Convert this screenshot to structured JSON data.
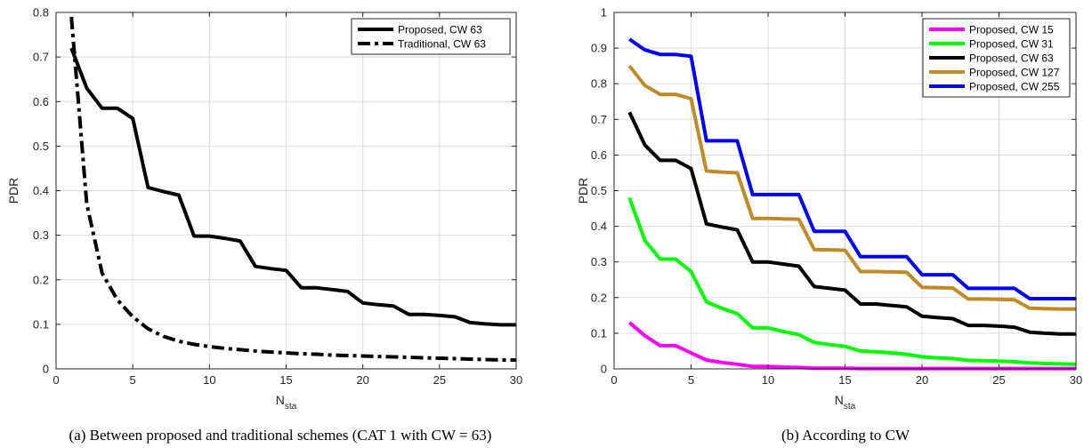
{
  "chart_data": [
    {
      "type": "line",
      "caption": "(a) Between proposed and traditional schemes (CAT 1 with CW = 63)",
      "xlabel": "N",
      "xlabel_sub": "sta",
      "ylabel": "PDR",
      "xlim": [
        0,
        30
      ],
      "ylim": [
        0,
        0.8
      ],
      "xticks": [
        0,
        5,
        10,
        15,
        20,
        25,
        30
      ],
      "yticks": [
        0,
        0.1,
        0.2,
        0.3,
        0.4,
        0.5,
        0.6,
        0.7,
        0.8
      ],
      "grid": true,
      "legend_position": "top-right",
      "series": [
        {
          "name": "Proposed, CW 63",
          "color": "#000000",
          "style": "solid",
          "x": [
            1,
            2,
            3,
            4,
            5,
            6,
            7,
            8,
            9,
            10,
            11,
            12,
            13,
            14,
            15,
            16,
            17,
            18,
            19,
            20,
            21,
            22,
            23,
            24,
            25,
            26,
            27,
            28,
            29,
            30
          ],
          "y": [
            0.72,
            0.63,
            0.585,
            0.585,
            0.562,
            0.407,
            0.398,
            0.39,
            0.298,
            0.298,
            0.293,
            0.287,
            0.23,
            0.225,
            0.221,
            0.182,
            0.182,
            0.178,
            0.174,
            0.148,
            0.144,
            0.141,
            0.122,
            0.122,
            0.12,
            0.117,
            0.104,
            0.101,
            0.099,
            0.099
          ]
        },
        {
          "name": "Traditional, CW 63",
          "color": "#000000",
          "style": "dashdot",
          "x": [
            1,
            2,
            3,
            4,
            5,
            6,
            7,
            8,
            9,
            10,
            11,
            12,
            13,
            14,
            15,
            16,
            17,
            18,
            19,
            20,
            21,
            22,
            23,
            24,
            25,
            26,
            27,
            28,
            29,
            30
          ],
          "y": [
            0.79,
            0.37,
            0.215,
            0.155,
            0.117,
            0.09,
            0.073,
            0.062,
            0.055,
            0.05,
            0.046,
            0.043,
            0.04,
            0.038,
            0.036,
            0.034,
            0.033,
            0.031,
            0.03,
            0.029,
            0.028,
            0.027,
            0.026,
            0.025,
            0.024,
            0.023,
            0.022,
            0.021,
            0.02,
            0.02
          ]
        }
      ]
    },
    {
      "type": "line",
      "caption": "(b) According to CW",
      "xlabel": "N",
      "xlabel_sub": "sta",
      "ylabel": "PDR",
      "xlim": [
        0,
        30
      ],
      "ylim": [
        0,
        1
      ],
      "xticks": [
        0,
        5,
        10,
        15,
        20,
        25,
        30
      ],
      "yticks": [
        0,
        0.1,
        0.2,
        0.3,
        0.4,
        0.5,
        0.6,
        0.7,
        0.8,
        0.9,
        1
      ],
      "grid": true,
      "legend_position": "top-right",
      "series": [
        {
          "name": "Proposed, CW 15",
          "color": "#ff00ff",
          "style": "solid",
          "x": [
            1,
            2,
            3,
            4,
            5,
            6,
            7,
            8,
            9,
            10,
            11,
            12,
            13,
            14,
            15,
            16,
            17,
            18,
            19,
            20,
            21,
            22,
            23,
            24,
            25,
            26,
            27,
            28,
            29,
            30
          ],
          "y": [
            0.13,
            0.093,
            0.065,
            0.065,
            0.045,
            0.025,
            0.018,
            0.013,
            0.007,
            0.007,
            0.005,
            0.004,
            0.002,
            0.002,
            0.002,
            0.001,
            0.001,
            0.001,
            0.001,
            0.001,
            0.001,
            0.001,
            0.001,
            0.001,
            0.001,
            0.001,
            0.001,
            0.001,
            0.001,
            0.001
          ]
        },
        {
          "name": "Proposed, CW 31",
          "color": "#00ff00",
          "style": "solid",
          "x": [
            1,
            2,
            3,
            4,
            5,
            6,
            7,
            8,
            9,
            10,
            11,
            12,
            13,
            14,
            15,
            16,
            17,
            18,
            19,
            20,
            21,
            22,
            23,
            24,
            25,
            26,
            27,
            28,
            29,
            30
          ],
          "y": [
            0.48,
            0.36,
            0.308,
            0.308,
            0.273,
            0.188,
            0.17,
            0.155,
            0.115,
            0.115,
            0.105,
            0.096,
            0.074,
            0.068,
            0.063,
            0.05,
            0.048,
            0.045,
            0.041,
            0.034,
            0.031,
            0.029,
            0.024,
            0.023,
            0.022,
            0.02,
            0.017,
            0.015,
            0.014,
            0.013
          ]
        },
        {
          "name": "Proposed, CW 63",
          "color": "#000000",
          "style": "solid",
          "x": [
            1,
            2,
            3,
            4,
            5,
            6,
            7,
            8,
            9,
            10,
            11,
            12,
            13,
            14,
            15,
            16,
            17,
            18,
            19,
            20,
            21,
            22,
            23,
            24,
            25,
            26,
            27,
            28,
            29,
            30
          ],
          "y": [
            0.72,
            0.628,
            0.585,
            0.585,
            0.562,
            0.407,
            0.398,
            0.39,
            0.3,
            0.3,
            0.294,
            0.288,
            0.231,
            0.226,
            0.221,
            0.182,
            0.182,
            0.178,
            0.174,
            0.148,
            0.144,
            0.141,
            0.122,
            0.122,
            0.12,
            0.117,
            0.103,
            0.1,
            0.098,
            0.098
          ]
        },
        {
          "name": "Proposed, CW 127",
          "color": "#c08a26",
          "style": "solid",
          "x": [
            1,
            2,
            3,
            4,
            5,
            6,
            7,
            8,
            9,
            10,
            11,
            12,
            13,
            14,
            15,
            16,
            17,
            18,
            19,
            20,
            21,
            22,
            23,
            24,
            25,
            26,
            27,
            28,
            29,
            30
          ],
          "y": [
            0.85,
            0.795,
            0.77,
            0.77,
            0.758,
            0.555,
            0.552,
            0.55,
            0.422,
            0.422,
            0.421,
            0.42,
            0.335,
            0.334,
            0.333,
            0.273,
            0.273,
            0.272,
            0.271,
            0.229,
            0.228,
            0.227,
            0.196,
            0.196,
            0.195,
            0.194,
            0.17,
            0.169,
            0.168,
            0.168
          ]
        },
        {
          "name": "Proposed, CW 255",
          "color": "#0000ff",
          "style": "solid",
          "x": [
            1,
            2,
            3,
            4,
            5,
            6,
            7,
            8,
            9,
            10,
            11,
            12,
            13,
            14,
            15,
            16,
            17,
            18,
            19,
            20,
            21,
            22,
            23,
            24,
            25,
            26,
            27,
            28,
            29,
            30
          ],
          "y": [
            0.925,
            0.895,
            0.882,
            0.882,
            0.877,
            0.64,
            0.64,
            0.64,
            0.489,
            0.489,
            0.489,
            0.489,
            0.386,
            0.386,
            0.386,
            0.315,
            0.315,
            0.315,
            0.315,
            0.264,
            0.264,
            0.264,
            0.226,
            0.226,
            0.226,
            0.226,
            0.197,
            0.197,
            0.197,
            0.197
          ]
        }
      ]
    }
  ]
}
